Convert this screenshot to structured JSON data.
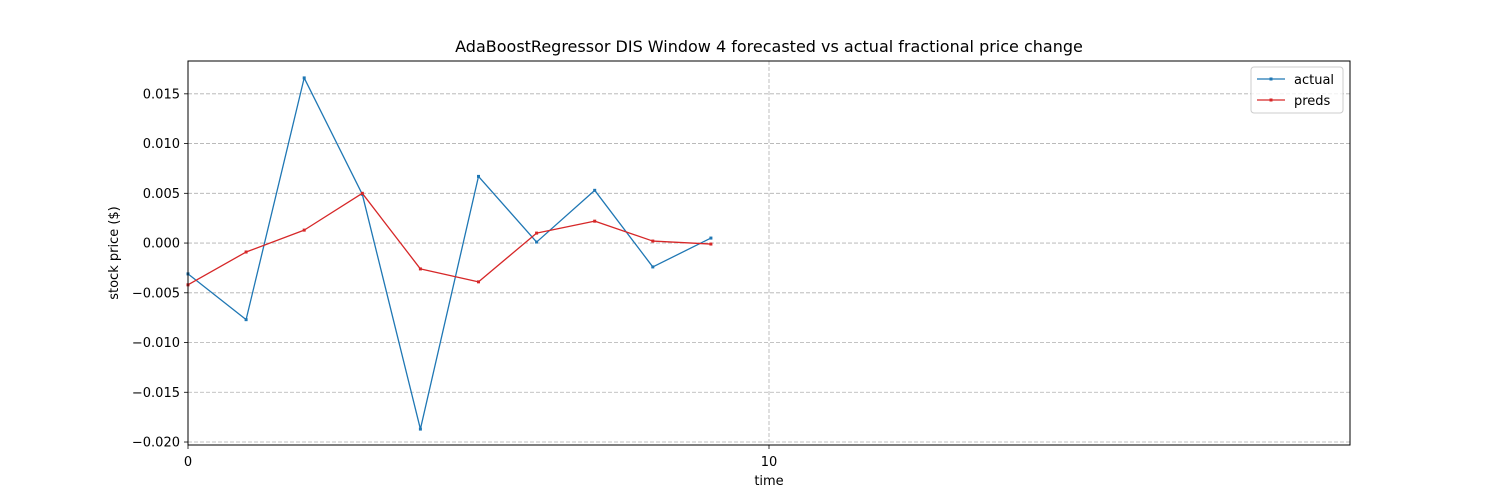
{
  "chart_data": {
    "type": "line",
    "title": "AdaBoostRegressor DIS Window 4 forecasted vs actual fractional price change",
    "xlabel": "time",
    "ylabel": "stock price ($)",
    "xlim": [
      0,
      20
    ],
    "ylim": [
      -0.0203,
      0.0183
    ],
    "x_ticks": [
      0,
      10
    ],
    "y_ticks": [
      -0.02,
      -0.015,
      -0.01,
      -0.005,
      0.0,
      0.005,
      0.01,
      0.015
    ],
    "x_tick_labels": [
      "0",
      "10"
    ],
    "y_tick_labels": [
      "−0.020",
      "−0.015",
      "−0.010",
      "−0.005",
      "0.000",
      "0.005",
      "0.010",
      "0.015"
    ],
    "grid": true,
    "legend_position": "top-right",
    "x": [
      0,
      1,
      2,
      3,
      4,
      5,
      6,
      7,
      8,
      9
    ],
    "series": [
      {
        "name": "actual",
        "color": "#1f77b4",
        "values": [
          -0.0031,
          -0.0077,
          0.0166,
          0.0049,
          -0.0187,
          0.0067,
          0.0001,
          0.0053,
          -0.0024,
          0.0005
        ]
      },
      {
        "name": "preds",
        "color": "#d62728",
        "values": [
          -0.0042,
          -0.0009,
          0.0013,
          0.005,
          -0.0026,
          -0.0039,
          0.001,
          0.0022,
          0.0002,
          -0.0001
        ]
      }
    ]
  }
}
